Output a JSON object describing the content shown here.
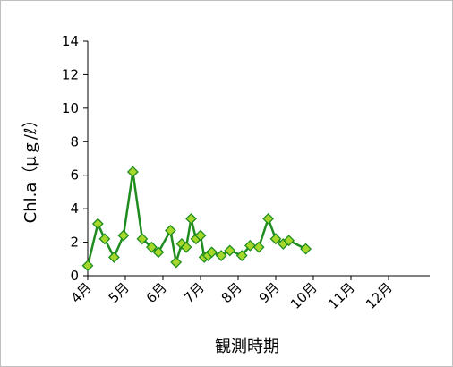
{
  "chart_data": {
    "type": "line",
    "ylabel": "Chl.a（μｇ/ℓ）",
    "xlabel": "観測時期",
    "ylim": [
      0,
      14
    ],
    "y_ticks": [
      0,
      2,
      4,
      6,
      8,
      10,
      12,
      14
    ],
    "xlim": [
      0,
      9
    ],
    "x_tick_labels": [
      "4月",
      "5月",
      "6月",
      "7月",
      "8月",
      "9月",
      "10月",
      "11月",
      "12月"
    ],
    "grid": false,
    "legend": "none",
    "series": [
      {
        "color": "#1e8c1e",
        "marker_fill": "#a6d82b",
        "points": [
          {
            "x": 0.0,
            "y": 0.6
          },
          {
            "x": 0.27,
            "y": 3.1
          },
          {
            "x": 0.45,
            "y": 2.2
          },
          {
            "x": 0.7,
            "y": 1.1
          },
          {
            "x": 0.95,
            "y": 2.4
          },
          {
            "x": 1.2,
            "y": 6.2
          },
          {
            "x": 1.45,
            "y": 2.2
          },
          {
            "x": 1.7,
            "y": 1.7
          },
          {
            "x": 1.88,
            "y": 1.4
          },
          {
            "x": 2.2,
            "y": 2.7
          },
          {
            "x": 2.35,
            "y": 0.8
          },
          {
            "x": 2.5,
            "y": 1.9
          },
          {
            "x": 2.62,
            "y": 1.7
          },
          {
            "x": 2.75,
            "y": 3.4
          },
          {
            "x": 2.88,
            "y": 2.2
          },
          {
            "x": 3.0,
            "y": 2.4
          },
          {
            "x": 3.1,
            "y": 1.1
          },
          {
            "x": 3.2,
            "y": 1.2
          },
          {
            "x": 3.3,
            "y": 1.4
          },
          {
            "x": 3.55,
            "y": 1.2
          },
          {
            "x": 3.78,
            "y": 1.5
          },
          {
            "x": 4.1,
            "y": 1.2
          },
          {
            "x": 4.32,
            "y": 1.8
          },
          {
            "x": 4.55,
            "y": 1.7
          },
          {
            "x": 4.8,
            "y": 3.4
          },
          {
            "x": 5.0,
            "y": 2.2
          },
          {
            "x": 5.2,
            "y": 1.9
          },
          {
            "x": 5.35,
            "y": 2.1
          },
          {
            "x": 5.8,
            "y": 1.6
          }
        ]
      }
    ]
  }
}
